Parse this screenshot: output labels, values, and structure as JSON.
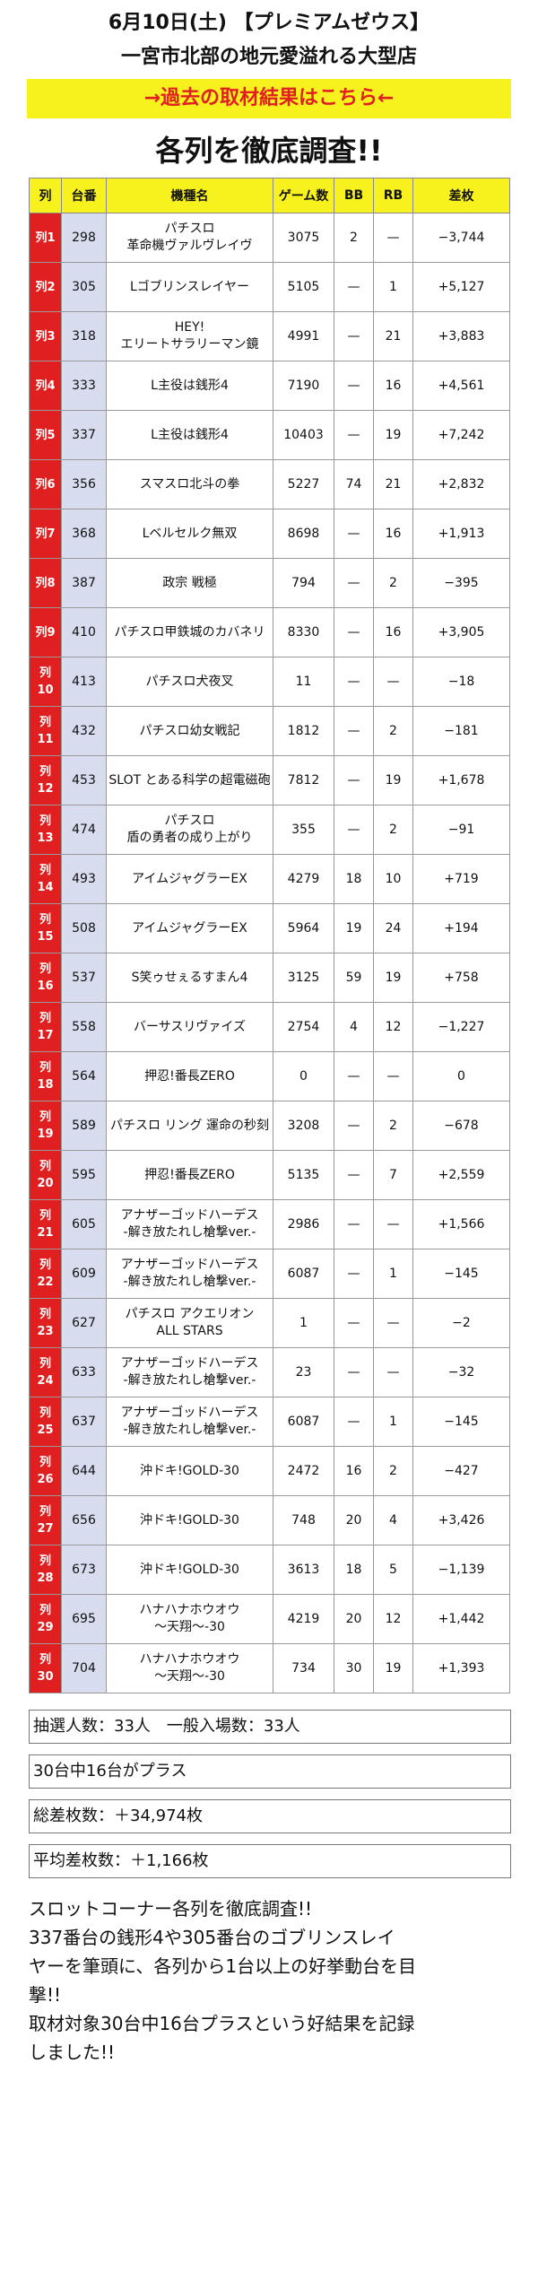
{
  "header": {
    "date_line": "6月10日(土) 【プレミアムゼウス】",
    "subtitle": "一宮市北部の地元愛溢れる大型店",
    "link_banner": "→過去の取材結果はこちら←",
    "headline": "各列を徹底調査!!"
  },
  "table": {
    "headers": [
      "列",
      "台番",
      "機種名",
      "ゲーム数",
      "BB",
      "RB",
      "差枚"
    ],
    "rows": [
      {
        "col": "列1",
        "num": "298",
        "name": [
          "パチスロ",
          "革命機ヴァルヴレイヴ"
        ],
        "games": "3075",
        "bb": "2",
        "rb": "—",
        "diff": "−3,744"
      },
      {
        "col": "列2",
        "num": "305",
        "name": [
          "Lゴブリンスレイヤー"
        ],
        "games": "5105",
        "bb": "—",
        "rb": "1",
        "diff": "+5,127"
      },
      {
        "col": "列3",
        "num": "318",
        "name": [
          "HEY!",
          "エリートサラリーマン鏡"
        ],
        "games": "4991",
        "bb": "—",
        "rb": "21",
        "diff": "+3,883"
      },
      {
        "col": "列4",
        "num": "333",
        "name": [
          "L主役は銭形4"
        ],
        "games": "7190",
        "bb": "—",
        "rb": "16",
        "diff": "+4,561"
      },
      {
        "col": "列5",
        "num": "337",
        "name": [
          "L主役は銭形4"
        ],
        "games": "10403",
        "bb": "—",
        "rb": "19",
        "diff": "+7,242"
      },
      {
        "col": "列6",
        "num": "356",
        "name": [
          "スマスロ北斗の拳"
        ],
        "games": "5227",
        "bb": "74",
        "rb": "21",
        "diff": "+2,832"
      },
      {
        "col": "列7",
        "num": "368",
        "name": [
          "Lベルセルク無双"
        ],
        "games": "8698",
        "bb": "—",
        "rb": "16",
        "diff": "+1,913"
      },
      {
        "col": "列8",
        "num": "387",
        "name": [
          "政宗 戦極"
        ],
        "games": "794",
        "bb": "—",
        "rb": "2",
        "diff": "−395"
      },
      {
        "col": "列9",
        "num": "410",
        "name": [
          "パチスロ甲鉄城のカバネリ"
        ],
        "games": "8330",
        "bb": "—",
        "rb": "16",
        "diff": "+3,905"
      },
      {
        "col": "列10",
        "num": "413",
        "name": [
          "パチスロ犬夜叉"
        ],
        "games": "11",
        "bb": "—",
        "rb": "—",
        "diff": "−18"
      },
      {
        "col": "列11",
        "num": "432",
        "name": [
          "パチスロ幼女戦記"
        ],
        "games": "1812",
        "bb": "—",
        "rb": "2",
        "diff": "−181"
      },
      {
        "col": "列12",
        "num": "453",
        "name": [
          "SLOT とある科学の超電磁砲"
        ],
        "games": "7812",
        "bb": "—",
        "rb": "19",
        "diff": "+1,678"
      },
      {
        "col": "列13",
        "num": "474",
        "name": [
          "パチスロ",
          "盾の勇者の成り上がり"
        ],
        "games": "355",
        "bb": "—",
        "rb": "2",
        "diff": "−91"
      },
      {
        "col": "列14",
        "num": "493",
        "name": [
          "アイムジャグラーEX"
        ],
        "games": "4279",
        "bb": "18",
        "rb": "10",
        "diff": "+719"
      },
      {
        "col": "列15",
        "num": "508",
        "name": [
          "アイムジャグラーEX"
        ],
        "games": "5964",
        "bb": "19",
        "rb": "24",
        "diff": "+194"
      },
      {
        "col": "列16",
        "num": "537",
        "name": [
          "S笑ゥせぇるすまん4"
        ],
        "games": "3125",
        "bb": "59",
        "rb": "19",
        "diff": "+758"
      },
      {
        "col": "列17",
        "num": "558",
        "name": [
          "バーサスリヴァイズ"
        ],
        "games": "2754",
        "bb": "4",
        "rb": "12",
        "diff": "−1,227"
      },
      {
        "col": "列18",
        "num": "564",
        "name": [
          "押忍!番長ZERO"
        ],
        "games": "0",
        "bb": "—",
        "rb": "—",
        "diff": "0"
      },
      {
        "col": "列19",
        "num": "589",
        "name": [
          "パチスロ リング 運命の秒刻"
        ],
        "games": "3208",
        "bb": "—",
        "rb": "2",
        "diff": "−678"
      },
      {
        "col": "列20",
        "num": "595",
        "name": [
          "押忍!番長ZERO"
        ],
        "games": "5135",
        "bb": "—",
        "rb": "7",
        "diff": "+2,559"
      },
      {
        "col": "列21",
        "num": "605",
        "name": [
          "アナザーゴッドハーデス",
          "-解き放たれし槍撃ver.-"
        ],
        "games": "2986",
        "bb": "—",
        "rb": "—",
        "diff": "+1,566"
      },
      {
        "col": "列22",
        "num": "609",
        "name": [
          "アナザーゴッドハーデス",
          "-解き放たれし槍撃ver.-"
        ],
        "games": "6087",
        "bb": "—",
        "rb": "1",
        "diff": "−145"
      },
      {
        "col": "列23",
        "num": "627",
        "name": [
          "パチスロ アクエリオン",
          "ALL STARS"
        ],
        "games": "1",
        "bb": "—",
        "rb": "—",
        "diff": "−2"
      },
      {
        "col": "列24",
        "num": "633",
        "name": [
          "アナザーゴッドハーデス",
          "-解き放たれし槍撃ver.-"
        ],
        "games": "23",
        "bb": "—",
        "rb": "—",
        "diff": "−32"
      },
      {
        "col": "列25",
        "num": "637",
        "name": [
          "アナザーゴッドハーデス",
          "-解き放たれし槍撃ver.-"
        ],
        "games": "6087",
        "bb": "—",
        "rb": "1",
        "diff": "−145"
      },
      {
        "col": "列26",
        "num": "644",
        "name": [
          "沖ドキ!GOLD-30"
        ],
        "games": "2472",
        "bb": "16",
        "rb": "2",
        "diff": "−427"
      },
      {
        "col": "列27",
        "num": "656",
        "name": [
          "沖ドキ!GOLD-30"
        ],
        "games": "748",
        "bb": "20",
        "rb": "4",
        "diff": "+3,426"
      },
      {
        "col": "列28",
        "num": "673",
        "name": [
          "沖ドキ!GOLD-30"
        ],
        "games": "3613",
        "bb": "18",
        "rb": "5",
        "diff": "−1,139"
      },
      {
        "col": "列29",
        "num": "695",
        "name": [
          "ハナハナホウオウ",
          "〜天翔〜-30"
        ],
        "games": "4219",
        "bb": "20",
        "rb": "12",
        "diff": "+1,442"
      },
      {
        "col": "列30",
        "num": "704",
        "name": [
          "ハナハナホウオウ",
          "〜天翔〜-30"
        ],
        "games": "734",
        "bb": "30",
        "rb": "19",
        "diff": "+1,393"
      }
    ]
  },
  "stats": {
    "lottery": "抽選人数：33人　一般入場数：33人",
    "plus_count": "30台中16台がプラス",
    "total_diff": "総差枚数：＋34,974枚",
    "avg_diff": "平均差枚数：＋1,166枚"
  },
  "summary": [
    "スロットコーナー各列を徹底調査!!",
    "337番台の銭形4や305番台のゴブリンスレイ",
    "ヤーを筆頭に、各列から1台以上の好挙動台を目",
    "撃!!",
    "取材対象30台中16台プラスという好結果を記録",
    "しました!!"
  ]
}
